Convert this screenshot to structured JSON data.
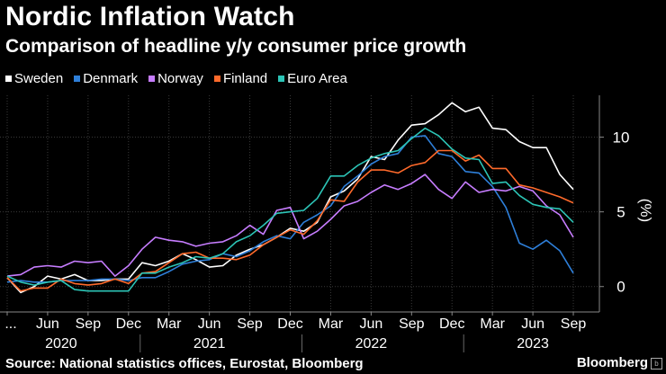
{
  "header": {
    "title": "Nordic Inflation Watch",
    "subtitle": "Comparison of headline y/y consumer price growth"
  },
  "footer": {
    "source": "Source: National statistics offices, Eurostat, Bloomberg",
    "brand": "Bloomberg"
  },
  "chart_data": {
    "type": "line",
    "title": "Nordic Inflation Watch",
    "subtitle": "Comparison of headline y/y consumer price growth",
    "ylabel": "(%)",
    "ylim": [
      -1.7,
      12.8
    ],
    "yticks": [
      0,
      5,
      10
    ],
    "xlim": [
      "2020-03",
      "2023-10"
    ],
    "month_ticks": [
      {
        "month": "2020-03",
        "label": "..."
      },
      {
        "month": "2020-06",
        "label": "Jun"
      },
      {
        "month": "2020-09",
        "label": "Sep"
      },
      {
        "month": "2020-12",
        "label": "Dec"
      },
      {
        "month": "2021-03",
        "label": "Mar"
      },
      {
        "month": "2021-06",
        "label": "Jun"
      },
      {
        "month": "2021-09",
        "label": "Sep"
      },
      {
        "month": "2021-12",
        "label": "Dec"
      },
      {
        "month": "2022-03",
        "label": "Mar"
      },
      {
        "month": "2022-06",
        "label": "Jun"
      },
      {
        "month": "2022-09",
        "label": "Sep"
      },
      {
        "month": "2022-12",
        "label": "Dec"
      },
      {
        "month": "2023-03",
        "label": "Mar"
      },
      {
        "month": "2023-06",
        "label": "Jun"
      },
      {
        "month": "2023-09",
        "label": "Sep"
      }
    ],
    "year_labels": [
      {
        "label": "2020",
        "month": "2020-07"
      },
      {
        "label": "2021",
        "month": "2021-06"
      },
      {
        "label": "2022",
        "month": "2022-06"
      },
      {
        "label": "2023",
        "month": "2023-06"
      }
    ],
    "year_separators": [
      "2021-01",
      "2022-01",
      "2023-01"
    ],
    "grid": true,
    "legend_position": "top-left",
    "x": [
      "2020-03",
      "2020-04",
      "2020-05",
      "2020-06",
      "2020-07",
      "2020-08",
      "2020-09",
      "2020-10",
      "2020-11",
      "2020-12",
      "2021-01",
      "2021-02",
      "2021-03",
      "2021-04",
      "2021-05",
      "2021-06",
      "2021-07",
      "2021-08",
      "2021-09",
      "2021-10",
      "2021-11",
      "2021-12",
      "2022-01",
      "2022-02",
      "2022-03",
      "2022-04",
      "2022-05",
      "2022-06",
      "2022-07",
      "2022-08",
      "2022-09",
      "2022-10",
      "2022-11",
      "2022-12",
      "2023-01",
      "2023-02",
      "2023-03",
      "2023-04",
      "2023-05",
      "2023-06",
      "2023-07",
      "2023-08",
      "2023-09"
    ],
    "series": [
      {
        "name": "Sweden",
        "color": "#ffffff",
        "values": [
          0.6,
          -0.4,
          0.0,
          0.7,
          0.5,
          0.8,
          0.4,
          0.4,
          0.5,
          0.5,
          1.6,
          1.4,
          1.7,
          2.2,
          1.8,
          1.3,
          1.4,
          2.1,
          2.5,
          2.8,
          3.3,
          3.9,
          3.7,
          4.3,
          6.0,
          6.4,
          7.2,
          8.7,
          8.5,
          9.8,
          10.8,
          10.9,
          11.5,
          12.3,
          11.7,
          12.0,
          10.6,
          10.5,
          9.7,
          9.3,
          9.3,
          7.5,
          6.5
        ]
      },
      {
        "name": "Denmark",
        "color": "#2e7fd9",
        "values": [
          0.3,
          0.4,
          0.3,
          0.3,
          0.4,
          0.4,
          0.4,
          0.5,
          0.5,
          0.4,
          0.6,
          0.6,
          1.0,
          1.5,
          1.7,
          1.8,
          2.2,
          2.0,
          2.4,
          3.0,
          3.4,
          3.2,
          4.3,
          4.8,
          5.4,
          6.7,
          7.4,
          8.2,
          8.7,
          8.9,
          10.0,
          10.1,
          8.9,
          8.7,
          7.7,
          7.6,
          6.7,
          5.3,
          2.9,
          2.5,
          3.1,
          2.4,
          0.9
        ]
      },
      {
        "name": "Norway",
        "color": "#c77dff",
        "values": [
          0.7,
          0.8,
          1.3,
          1.4,
          1.3,
          1.7,
          1.6,
          1.7,
          0.7,
          1.4,
          2.5,
          3.3,
          3.1,
          3.0,
          2.7,
          2.9,
          3.0,
          3.4,
          4.1,
          3.5,
          5.1,
          5.3,
          3.2,
          3.7,
          4.5,
          5.4,
          5.7,
          6.3,
          6.8,
          6.5,
          6.9,
          7.5,
          6.5,
          5.9,
          7.0,
          6.3,
          6.5,
          6.4,
          6.7,
          6.4,
          5.4,
          4.8,
          3.3
        ]
      },
      {
        "name": "Finland",
        "color": "#ff6a2b",
        "values": [
          0.6,
          -0.3,
          -0.1,
          -0.1,
          0.5,
          0.2,
          0.1,
          0.2,
          0.5,
          0.2,
          0.9,
          1.0,
          1.6,
          2.2,
          2.3,
          1.9,
          1.9,
          1.8,
          2.1,
          2.8,
          3.3,
          3.8,
          3.5,
          4.4,
          5.8,
          5.7,
          7.0,
          7.8,
          7.8,
          7.6,
          8.1,
          8.3,
          9.1,
          9.1,
          8.4,
          8.8,
          7.9,
          7.9,
          6.8,
          6.6,
          6.3,
          6.0,
          5.6
        ]
      },
      {
        "name": "Euro Area",
        "color": "#2cc4b6",
        "values": [
          0.7,
          0.3,
          0.1,
          0.3,
          0.4,
          -0.2,
          -0.3,
          -0.3,
          -0.3,
          -0.3,
          0.9,
          0.9,
          1.3,
          1.6,
          2.0,
          1.9,
          2.2,
          3.0,
          3.4,
          4.1,
          4.9,
          5.0,
          5.1,
          5.9,
          7.4,
          7.4,
          8.1,
          8.6,
          8.9,
          9.1,
          9.9,
          10.6,
          10.1,
          9.2,
          8.6,
          8.5,
          6.9,
          7.0,
          6.1,
          5.5,
          5.3,
          5.2,
          4.3
        ]
      }
    ]
  }
}
